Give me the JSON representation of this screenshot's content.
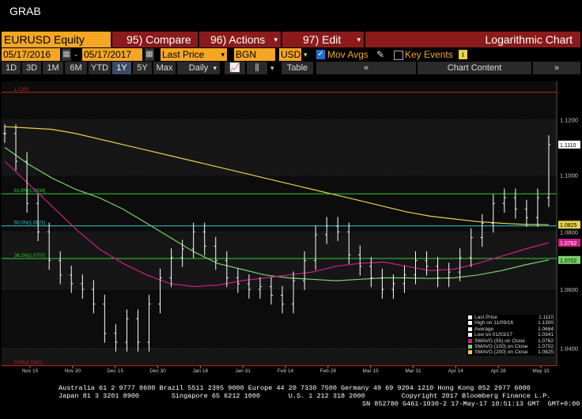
{
  "window": {
    "title": "GRAB"
  },
  "toolbar": {
    "ticker": "EURUSD Equity",
    "compare": "95) Compare",
    "actions": "96) Actions",
    "edit": "97) Edit",
    "mode": "Logarithmic Chart"
  },
  "settings": {
    "start_date": "05/17/2016",
    "end_date": "05/17/2017",
    "field": "Last Price",
    "source": "BGN",
    "currency": "USD",
    "mov_avgs": "Mov Avgs",
    "key_events": "Key Events"
  },
  "periods": [
    "1D",
    "3D",
    "1M",
    "6M",
    "YTD",
    "1Y",
    "5Y",
    "Max"
  ],
  "selected_period": "1Y",
  "frequency": "Daily",
  "table_label": "Table",
  "chart_content_label": "Chart Content",
  "chart_data": {
    "type": "line",
    "y_scale": "log",
    "ylim": [
      1.034,
      1.134
    ],
    "y_ticks": [
      "1.1200",
      "1.1000",
      "1.0800",
      "1.0600",
      "1.0400"
    ],
    "x_ticks": [
      "Nov 15",
      "Nov 30",
      "Dec 15",
      "Dec 30",
      "Jan 16",
      "Jan 31",
      "Feb 14",
      "Feb 28",
      "Mar 15",
      "Mar 31",
      "Apr 14",
      "Apr 28",
      "May 15"
    ],
    "year_labels": [
      "2016",
      "2017"
    ],
    "fib_levels": [
      {
        "label": "1.1300",
        "value": 1.13,
        "color": "#cc2222"
      },
      {
        "label": "61.8%(1.0934)",
        "value": 1.0934,
        "color": "#33cc33"
      },
      {
        "label": "50.0%(1.0821)",
        "value": 1.0821,
        "color": "#33cccc"
      },
      {
        "label": "38.2%(1.0707)",
        "value": 1.0707,
        "color": "#33cc33"
      },
      {
        "label": "0.0%(1.0341)",
        "value": 1.0341,
        "color": "#cc2222"
      }
    ],
    "series": [
      {
        "name": "SMAVG (200) on Close",
        "color": "#e8d24a",
        "values": [
          1.1175,
          1.117,
          1.1165,
          1.115,
          1.113,
          1.111,
          1.109,
          1.107,
          1.105,
          1.103,
          1.101,
          1.099,
          1.097,
          1.095,
          1.093,
          1.091,
          1.089,
          1.087,
          1.0855,
          1.0845,
          1.0836,
          1.083,
          1.0826,
          1.0825
        ]
      },
      {
        "name": "SMAVG (100) on Close",
        "color": "#7ad36a",
        "values": [
          1.11,
          1.104,
          1.099,
          1.095,
          1.092,
          1.088,
          1.083,
          1.078,
          1.073,
          1.069,
          1.067,
          1.065,
          1.064,
          1.0635,
          1.063,
          1.0635,
          1.064,
          1.064,
          1.0638,
          1.064,
          1.065,
          1.0665,
          1.0685,
          1.0702
        ]
      },
      {
        "name": "SMAVG (55) on Close",
        "color": "#d01c8b",
        "values": [
          1.105,
          1.097,
          1.089,
          1.081,
          1.074,
          1.069,
          1.065,
          1.062,
          1.061,
          1.0615,
          1.063,
          1.064,
          1.065,
          1.066,
          1.068,
          1.069,
          1.0695,
          1.068,
          1.0665,
          1.067,
          1.069,
          1.0715,
          1.074,
          1.0762
        ]
      },
      {
        "name": "Last Price",
        "color": "#ffffff",
        "values": [
          1.115,
          1.105,
          1.09,
          1.08,
          1.07,
          1.065,
          1.062,
          1.06,
          1.055,
          1.045,
          1.042,
          1.05,
          1.042,
          1.055,
          1.064,
          1.071,
          1.074,
          1.08,
          1.075,
          1.07,
          1.064,
          1.062,
          1.06,
          1.061,
          1.058,
          1.055,
          1.063,
          1.07,
          1.079,
          1.082,
          1.08,
          1.072,
          1.068,
          1.064,
          1.06,
          1.062,
          1.065,
          1.07,
          1.068,
          1.064,
          1.066,
          1.071,
          1.078,
          1.083,
          1.09,
          1.092,
          1.088,
          1.085,
          1.092,
          1.111
        ]
      }
    ],
    "legend": [
      {
        "label": "Last Price",
        "value": "1.1110",
        "color": "#ffffff"
      },
      {
        "label": "High on 11/09/16",
        "value": "1.1300",
        "color": "#ffffff"
      },
      {
        "label": "Average",
        "value": "1.0684",
        "color": "#ffffff"
      },
      {
        "label": "Low on 01/03/17",
        "value": "1.0341",
        "color": "#ffffff"
      },
      {
        "label": "SMAVG (55) on Close",
        "value": "1.0762",
        "color": "#d01c8b"
      },
      {
        "label": "SMAVG (100) on Close",
        "value": "1.0702",
        "color": "#7ad36a"
      },
      {
        "label": "SMAVG (200) on Close",
        "value": "1.0825",
        "color": "#e8d24a"
      }
    ],
    "value_tags": [
      {
        "text": "1.1110",
        "value": 1.111,
        "bg": "#ffffff",
        "fg": "#000000"
      },
      {
        "text": "1.0825",
        "value": 1.0825,
        "bg": "#e8d24a",
        "fg": "#000000"
      },
      {
        "text": "1.0762",
        "value": 1.0762,
        "bg": "#d01c8b",
        "fg": "#ffffff"
      },
      {
        "text": "1.0702",
        "value": 1.0702,
        "bg": "#7ad36a",
        "fg": "#000000"
      }
    ]
  },
  "footer": {
    "line1": "Australia 61 2 9777 8600 Brazil 5511 2395 9000 Europe 44 20 7330 7500 Germany 49 69 9204 1210 Hong Kong 852 2977 6000",
    "line2": "Japan 81 3 3201 8900        Singapore 65 6212 1000       U.S. 1 212 318 2000         Copyright 2017 Bloomberg Finance L.P.",
    "line3": "SN 852780 G461-1030-2 17-May-17 10:51:13 GMT  GMT+0:00"
  }
}
